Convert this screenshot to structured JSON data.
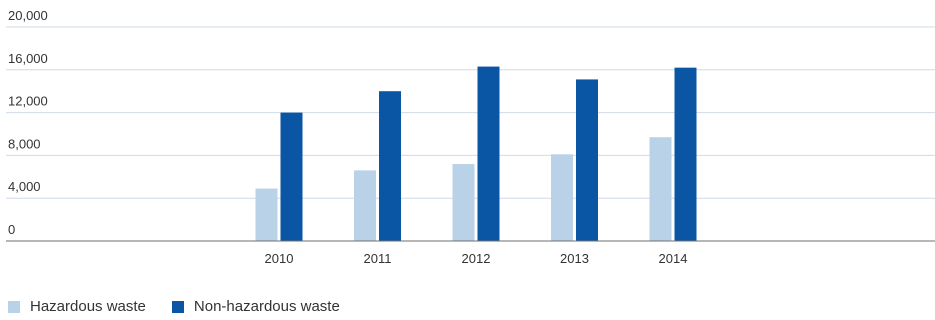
{
  "chart_data": {
    "type": "bar",
    "categories": [
      "2010",
      "2011",
      "2012",
      "2013",
      "2014"
    ],
    "series": [
      {
        "name": "Hazardous waste",
        "color": "#b9d2e8",
        "values": [
          4900,
          6600,
          7200,
          8100,
          9700
        ]
      },
      {
        "name": "Non-hazardous waste",
        "color": "#0a56a5",
        "values": [
          12000,
          14000,
          16300,
          15100,
          16200
        ]
      }
    ],
    "ylim": [
      0,
      20000
    ],
    "yticks": [
      "0",
      "4,000",
      "8,000",
      "12,000",
      "16,000",
      "20,000"
    ],
    "ytick_values": [
      0,
      4000,
      8000,
      12000,
      16000,
      20000
    ],
    "grid": true,
    "legend_position": "bottom-left",
    "title": "",
    "xlabel": "",
    "ylabel": ""
  }
}
